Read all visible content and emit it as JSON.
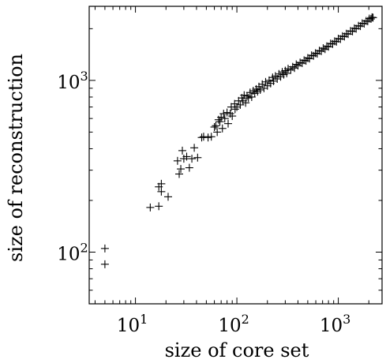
{
  "chart_data": {
    "type": "scatter",
    "xscale": "log",
    "yscale": "log",
    "xlabel": "size of core set",
    "ylabel": "size of reconstruction",
    "xlim": [
      3.5,
      2700
    ],
    "ylim": [
      50,
      2700
    ],
    "xticks": [
      {
        "value": 10,
        "base": "10",
        "exp": "1"
      },
      {
        "value": 100,
        "base": "10",
        "exp": "2"
      },
      {
        "value": 1000,
        "base": "10",
        "exp": "3"
      }
    ],
    "yticks": [
      {
        "value": 100,
        "base": "10",
        "exp": "2"
      },
      {
        "value": 1000,
        "base": "10",
        "exp": "3"
      }
    ],
    "marker": "+",
    "series": [
      {
        "points": [
          [
            5,
            105
          ],
          [
            5,
            85
          ],
          [
            14,
            182
          ],
          [
            17,
            185
          ],
          [
            17,
            240
          ],
          [
            18,
            225
          ],
          [
            18,
            250
          ],
          [
            21,
            210
          ],
          [
            26,
            340
          ],
          [
            27,
            285
          ],
          [
            28,
            305
          ],
          [
            29,
            390
          ],
          [
            30,
            350
          ],
          [
            32,
            360
          ],
          [
            34,
            310
          ],
          [
            36,
            350
          ],
          [
            38,
            405
          ],
          [
            41,
            355
          ],
          [
            45,
            465
          ],
          [
            47,
            470
          ],
          [
            52,
            465
          ],
          [
            56,
            470
          ],
          [
            60,
            535
          ],
          [
            64,
            500
          ],
          [
            68,
            575
          ],
          [
            72,
            525
          ],
          [
            76,
            600
          ],
          [
            82,
            560
          ],
          [
            86,
            640
          ],
          [
            90,
            620
          ],
          [
            96,
            680
          ],
          [
            100,
            700
          ],
          [
            108,
            720
          ],
          [
            115,
            760
          ],
          [
            122,
            740
          ],
          [
            130,
            790
          ],
          [
            140,
            800
          ],
          [
            150,
            840
          ],
          [
            160,
            860
          ],
          [
            170,
            880
          ],
          [
            185,
            900
          ],
          [
            200,
            930
          ],
          [
            215,
            960
          ],
          [
            230,
            990
          ],
          [
            250,
            1020
          ],
          [
            270,
            1050
          ],
          [
            290,
            1080
          ],
          [
            310,
            1100
          ],
          [
            340,
            1150
          ],
          [
            370,
            1180
          ],
          [
            400,
            1220
          ],
          [
            440,
            1260
          ],
          [
            480,
            1300
          ],
          [
            520,
            1340
          ],
          [
            570,
            1390
          ],
          [
            620,
            1430
          ],
          [
            680,
            1480
          ],
          [
            740,
            1520
          ],
          [
            800,
            1570
          ],
          [
            880,
            1630
          ],
          [
            960,
            1680
          ],
          [
            1050,
            1740
          ],
          [
            1150,
            1800
          ],
          [
            1250,
            1860
          ],
          [
            1380,
            1930
          ],
          [
            1500,
            2000
          ],
          [
            1650,
            2070
          ],
          [
            1800,
            2140
          ],
          [
            1950,
            2210
          ],
          [
            2100,
            2280
          ],
          [
            2200,
            2320
          ],
          [
            62,
            545
          ],
          [
            66,
            590
          ],
          [
            70,
            610
          ],
          [
            74,
            640
          ],
          [
            80,
            650
          ],
          [
            88,
            700
          ],
          [
            95,
            730
          ],
          [
            104,
            760
          ],
          [
            112,
            790
          ],
          [
            118,
            820
          ],
          [
            126,
            810
          ],
          [
            135,
            850
          ],
          [
            145,
            870
          ],
          [
            155,
            890
          ],
          [
            165,
            920
          ],
          [
            178,
            950
          ],
          [
            192,
            980
          ],
          [
            208,
            1000
          ],
          [
            225,
            1040
          ],
          [
            240,
            1060
          ],
          [
            260,
            1090
          ],
          [
            280,
            1120
          ],
          [
            300,
            1140
          ],
          [
            320,
            1170
          ],
          [
            355,
            1200
          ],
          [
            385,
            1240
          ],
          [
            420,
            1270
          ],
          [
            460,
            1310
          ],
          [
            500,
            1350
          ],
          [
            545,
            1400
          ],
          [
            595,
            1440
          ],
          [
            650,
            1490
          ],
          [
            710,
            1540
          ],
          [
            770,
            1580
          ],
          [
            840,
            1640
          ],
          [
            920,
            1690
          ],
          [
            1000,
            1750
          ],
          [
            1100,
            1810
          ],
          [
            1200,
            1870
          ],
          [
            1320,
            1940
          ],
          [
            1440,
            2010
          ],
          [
            1580,
            2080
          ],
          [
            1720,
            2150
          ],
          [
            1880,
            2220
          ],
          [
            2020,
            2290
          ],
          [
            2150,
            2330
          ]
        ]
      }
    ],
    "grid": false
  }
}
